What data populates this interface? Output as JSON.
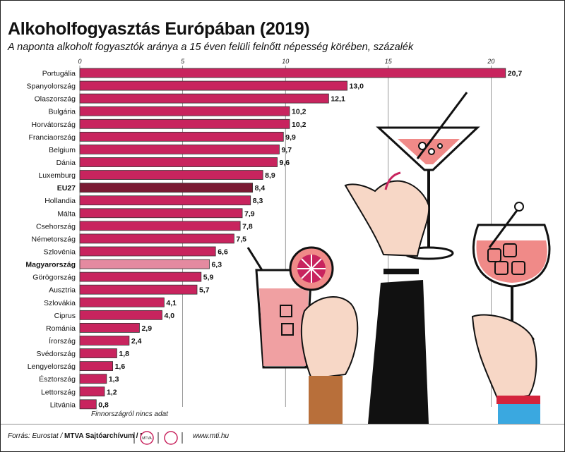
{
  "title": "Alkoholfogyasztás Európában (2019)",
  "subtitle": "A naponta alkoholt fogyasztók aránya a 15 éven felüli felnőtt népesség körében, százalék",
  "note": "Finnországról nincs adat",
  "source_label": "Forrás: Eurostat / ",
  "source_bold": "MTVA Sajtóarchívum / MTI",
  "url": "www.mti.hu",
  "logo_text": "MTVA",
  "colors": {
    "bar": "#c8245e",
    "eu": "#7a1a33",
    "hungary": "#e48aa0",
    "grid": "#555555"
  },
  "chart_data": {
    "type": "bar",
    "orientation": "horizontal",
    "title": "Alkoholfogyasztás Európában (2019)",
    "subtitle": "A naponta alkoholt fogyasztók aránya a 15 éven felüli felnőtt népesség körében, százalék",
    "xlim": [
      0,
      21
    ],
    "xticks": [
      0,
      5,
      10,
      15,
      20
    ],
    "grid": true,
    "categories": [
      "Portugália",
      "Spanyolország",
      "Olaszország",
      "Bulgária",
      "Horvátország",
      "Franciaország",
      "Belgium",
      "Dánia",
      "Luxemburg",
      "EU27",
      "Hollandia",
      "Málta",
      "Csehország",
      "Németország",
      "Szlovénia",
      "Magyarország",
      "Görögország",
      "Ausztria",
      "Szlovákia",
      "Ciprus",
      "Románia",
      "Írország",
      "Svédország",
      "Lengyelország",
      "Észtország",
      "Lettország",
      "Litvánia"
    ],
    "values": [
      20.7,
      13.0,
      12.1,
      10.2,
      10.2,
      9.9,
      9.7,
      9.6,
      8.9,
      8.4,
      8.3,
      7.9,
      7.8,
      7.5,
      6.6,
      6.3,
      5.9,
      5.7,
      4.1,
      4.0,
      2.9,
      2.4,
      1.8,
      1.6,
      1.3,
      1.2,
      0.8
    ],
    "value_labels": [
      "20,7",
      "13,0",
      "12,1",
      "10,2",
      "10,2",
      "9,9",
      "9,7",
      "9,6",
      "8,9",
      "8,4",
      "8,3",
      "7,9",
      "7,8",
      "7,5",
      "6,6",
      "6,3",
      "5,9",
      "5,7",
      "4,1",
      "4,0",
      "2,9",
      "2,4",
      "1,8",
      "1,6",
      "1,3",
      "1,2",
      "0,8"
    ],
    "highlighted": [
      "EU27",
      "Magyarország"
    ]
  }
}
